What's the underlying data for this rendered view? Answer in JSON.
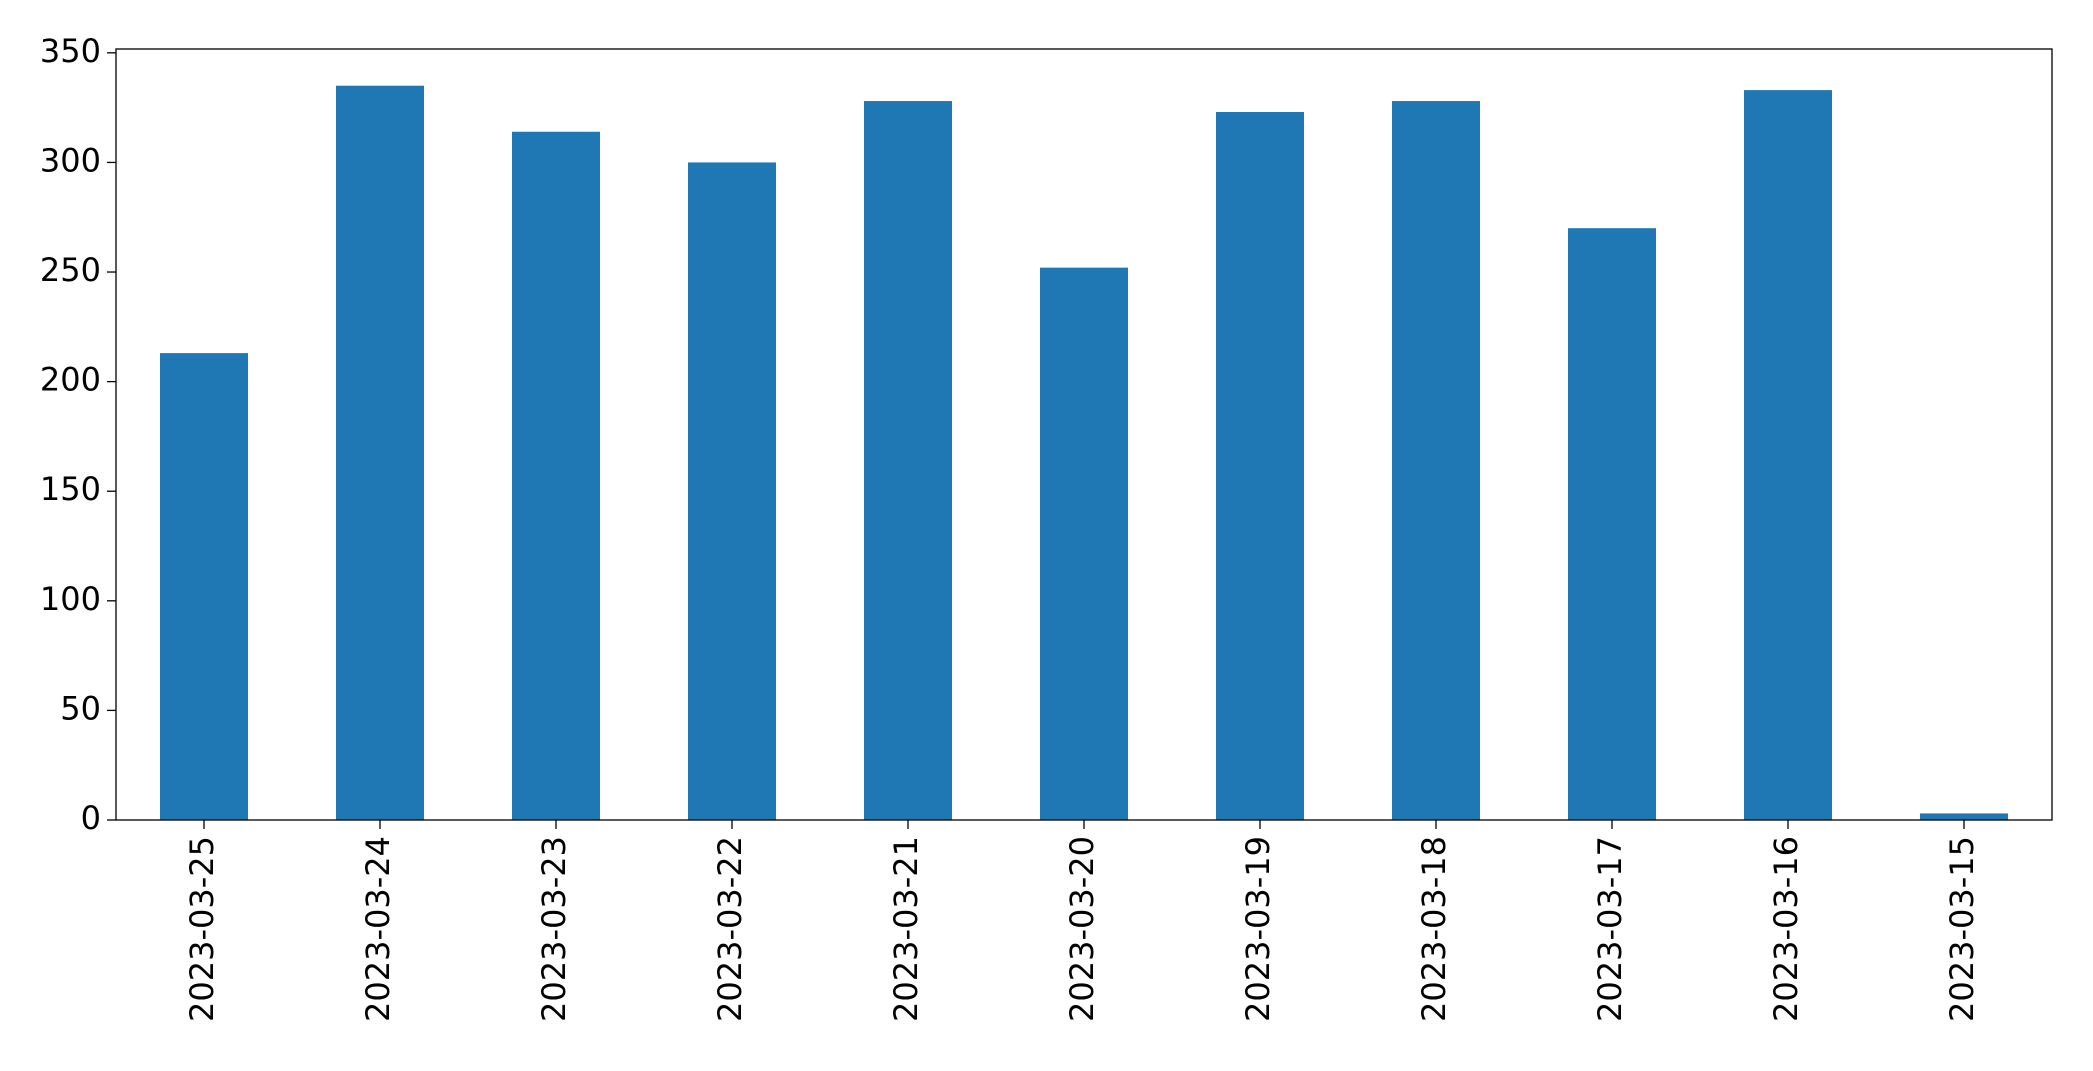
{
  "chart_data": {
    "type": "bar",
    "categories": [
      "2023-03-25",
      "2023-03-24",
      "2023-03-23",
      "2023-03-22",
      "2023-03-21",
      "2023-03-20",
      "2023-03-19",
      "2023-03-18",
      "2023-03-17",
      "2023-03-16",
      "2023-03-15"
    ],
    "values": [
      213,
      335,
      314,
      300,
      328,
      252,
      323,
      328,
      270,
      333,
      3
    ],
    "color": "#1f77b4",
    "ylim": [
      0,
      351.75
    ],
    "yticks": [
      0,
      50,
      100,
      150,
      200,
      250,
      300,
      350
    ],
    "grid": false
  }
}
